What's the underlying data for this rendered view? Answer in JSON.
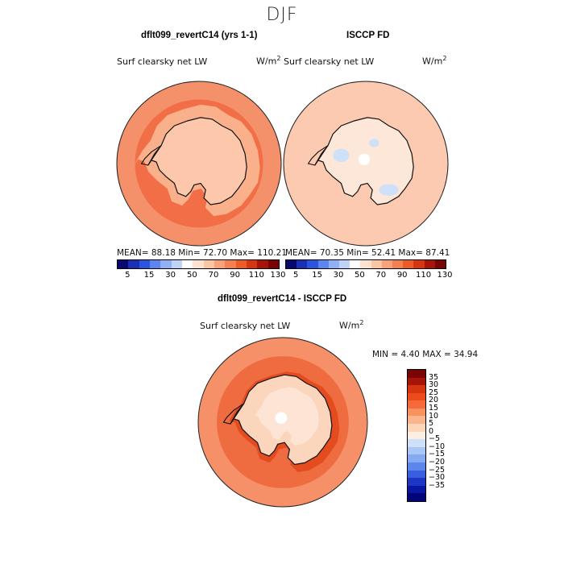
{
  "figure_title": "DJF",
  "panels": [
    {
      "title": "dflt099_revertC14 (yrs 1-1)",
      "variable": "Surf clearsky net LW",
      "unit": "W/m",
      "unit_exp": "2",
      "stats": "MEAN=  88.18  Min=  72.70  Max=  110.21",
      "mean": 88.18,
      "min": 72.7,
      "max": 110.21
    },
    {
      "title": "ISCCP FD",
      "variable": "Surf clearsky net LW",
      "unit": "W/m",
      "unit_exp": "2",
      "stats": "MEAN=  70.35  Min=  52.41  Max=  87.41",
      "mean": 70.35,
      "min": 52.41,
      "max": 87.41
    },
    {
      "title": "dflt099_revertC14 - ISCCP FD",
      "variable": "Surf clearsky net LW",
      "unit": "W/m",
      "unit_exp": "2",
      "stats": "MIN =   4.40  MAX =  34.94",
      "min": 4.4,
      "max": 34.94
    }
  ],
  "colorbar_abs": {
    "labels": [
      "5",
      "15",
      "30",
      "50",
      "70",
      "90",
      "110",
      "130"
    ],
    "colors": [
      "#08086e",
      "#1a2fb5",
      "#2d54e0",
      "#5d84f0",
      "#8fb0f5",
      "#bdd3f8",
      "#ffffff",
      "#fde3cf",
      "#fbc4a3",
      "#f8a27b",
      "#f5804f",
      "#ee5a28",
      "#d63512",
      "#a8140a",
      "#7a0303"
    ]
  },
  "colorbar_diff": {
    "labels": [
      "35",
      "30",
      "25",
      "20",
      "15",
      "10",
      "5",
      "0",
      "−5",
      "−10",
      "−15",
      "−20",
      "−25",
      "−30",
      "−35"
    ],
    "colors": [
      "#7a0303",
      "#a8140a",
      "#d63512",
      "#ee4a1c",
      "#f56a3a",
      "#f8925f",
      "#fbb58c",
      "#fdd5b8",
      "#fdeee2",
      "#cfe0f9",
      "#a9c6f6",
      "#85aaf2",
      "#5c86ec",
      "#3a5ee0",
      "#1d37c4",
      "#0a17a3",
      "#03037a"
    ]
  },
  "map_colors": {
    "ocean_a": "#f5916a",
    "ring_a": "#f16e46",
    "coast_a": "#f9b08b",
    "land_a": "#fcc7aa",
    "ocean_b": "#fbcab0",
    "land_b": "#fde7d8",
    "cold_b": "#cfe0f9",
    "ocean_c": "#f59068",
    "ring_c": "#ef6b40",
    "dark_c": "#e44c1f",
    "land_c": "#fcd5bd"
  }
}
